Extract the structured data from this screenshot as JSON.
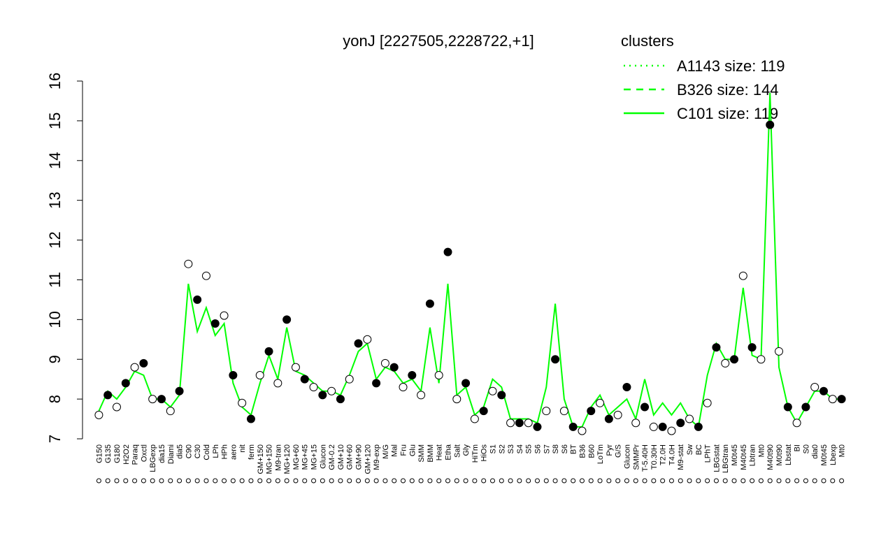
{
  "chart_data": {
    "type": "line",
    "title": "yonJ [2227505,2228722,+1]",
    "legend_title": "clusters",
    "legend_color": "#00ff00",
    "categories": [
      "G150",
      "G135",
      "G180",
      "H2O2",
      "Paraq",
      "Oxctl",
      "LBGexp",
      "dia15",
      "Diami",
      "dia5",
      "C90",
      "C30",
      "Cold",
      "LPh",
      "HPh",
      "aero",
      "nit",
      "ferm",
      "GM+150",
      "MG+150",
      "M9-tran",
      "MG+120",
      "MG+60",
      "MG+45",
      "MG+15",
      "Glucon",
      "GM-0.2",
      "GM+10",
      "GM+60",
      "GM+90",
      "GM+120",
      "M9-exp",
      "M/G",
      "Mal",
      "Fru",
      "Glu",
      "SMM",
      "BMM",
      "Heat",
      "Etha",
      "Salt",
      "Gly",
      "HiTm",
      "HiOs",
      "S1",
      "S2",
      "S3",
      "S4",
      "S5",
      "S6",
      "S7",
      "S8",
      "S6",
      "BT",
      "B36",
      "B60",
      "LoTm",
      "Pyr",
      "G/S",
      "Glucon",
      "SMMPr",
      "T-5.40H",
      "T0.30H",
      "T2.0H",
      "T4.0H",
      "M9-stat",
      "Sw",
      "BC",
      "LPhT",
      "LBGstat",
      "LBGtran",
      "M0t45",
      "M40t45",
      "Lbtran",
      "Mt0",
      "M40t90",
      "M0t90",
      "Lbstat",
      "BI",
      "S0",
      "dia0",
      "M0t45",
      "Lbexp",
      "Mt0"
    ],
    "points": [
      7.6,
      8.1,
      7.8,
      8.4,
      8.8,
      8.9,
      8.0,
      8.0,
      7.7,
      8.2,
      11.4,
      10.5,
      11.1,
      9.9,
      10.1,
      8.6,
      7.9,
      7.5,
      8.6,
      9.2,
      8.4,
      10.0,
      8.8,
      8.5,
      8.3,
      8.1,
      8.2,
      8.0,
      8.5,
      9.4,
      9.5,
      8.4,
      8.9,
      8.8,
      8.3,
      8.6,
      8.1,
      10.4,
      8.6,
      11.7,
      8.0,
      8.4,
      7.5,
      7.7,
      8.2,
      8.1,
      7.4,
      7.4,
      7.4,
      7.3,
      7.7,
      9.0,
      7.7,
      7.3,
      7.2,
      7.7,
      7.9,
      7.5,
      7.6,
      8.3,
      7.4,
      7.8,
      7.3,
      7.3,
      7.2,
      7.4,
      7.5,
      7.3,
      7.9,
      9.3,
      8.9,
      9.0,
      11.1,
      9.3,
      9.0,
      14.9,
      9.2,
      7.8,
      7.4,
      7.8,
      8.3,
      8.2,
      8.0,
      8.0
    ],
    "series": [
      {
        "name": "A1143 size: 119",
        "color": "#00ff00",
        "dash": "2 6"
      },
      {
        "name": "B326 size: 144",
        "color": "#00ff00",
        "dash": "10 8"
      },
      {
        "name": "C101 size: 119",
        "color": "#00ff00",
        "dash": "none",
        "values": [
          7.7,
          8.2,
          8.0,
          8.3,
          8.7,
          8.6,
          8.0,
          8.0,
          7.8,
          8.1,
          10.9,
          9.7,
          10.3,
          9.6,
          9.9,
          8.4,
          7.8,
          7.6,
          8.4,
          9.1,
          8.5,
          9.8,
          8.7,
          8.6,
          8.4,
          8.2,
          8.2,
          8.1,
          8.6,
          9.2,
          9.4,
          8.5,
          8.8,
          8.7,
          8.4,
          8.5,
          8.2,
          9.8,
          8.4,
          10.9,
          8.1,
          8.3,
          7.6,
          7.8,
          8.5,
          8.3,
          7.5,
          7.5,
          7.5,
          7.4,
          8.3,
          10.4,
          8.0,
          7.3,
          7.3,
          7.8,
          8.1,
          7.6,
          7.8,
          8.0,
          7.5,
          8.5,
          7.6,
          7.9,
          7.6,
          7.9,
          7.5,
          7.3,
          8.6,
          9.4,
          9.0,
          9.0,
          10.8,
          9.1,
          9.0,
          15.7,
          8.8,
          7.8,
          7.4,
          7.8,
          8.2,
          8.2,
          8.0,
          8.0
        ]
      }
    ],
    "ylim": [
      7,
      16
    ],
    "yticks": [
      7,
      8,
      9,
      10,
      11,
      12,
      13,
      14,
      15,
      16
    ]
  }
}
